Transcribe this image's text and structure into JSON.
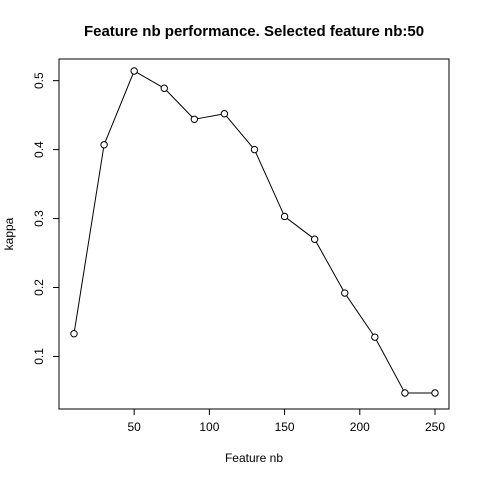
{
  "chart_data": {
    "type": "line",
    "title": "Feature nb performance. Selected feature nb:50",
    "xlabel": "Feature nb",
    "ylabel": "kappa",
    "xlim": [
      10,
      250
    ],
    "ylim": [
      0.047,
      0.514
    ],
    "x_ticks": [
      50,
      100,
      150,
      200,
      250
    ],
    "y_ticks": [
      0.1,
      0.2,
      0.3,
      0.4,
      0.5
    ],
    "x_tick_labels": [
      "50",
      "100",
      "150",
      "200",
      "250"
    ],
    "y_tick_labels": [
      "0.1",
      "0.2",
      "0.3",
      "0.4",
      "0.5"
    ],
    "grid": false,
    "marker": "open-circle",
    "series": [
      {
        "x": [
          10,
          30,
          50,
          70,
          90,
          110,
          130,
          150,
          170,
          190,
          210,
          230,
          250
        ],
        "y": [
          0.133,
          0.407,
          0.514,
          0.489,
          0.444,
          0.452,
          0.4,
          0.303,
          0.27,
          0.192,
          0.128,
          0.047,
          0.047
        ]
      }
    ],
    "colors": {
      "line": "#000000",
      "marker": "#000000",
      "frame": "#000000"
    }
  }
}
